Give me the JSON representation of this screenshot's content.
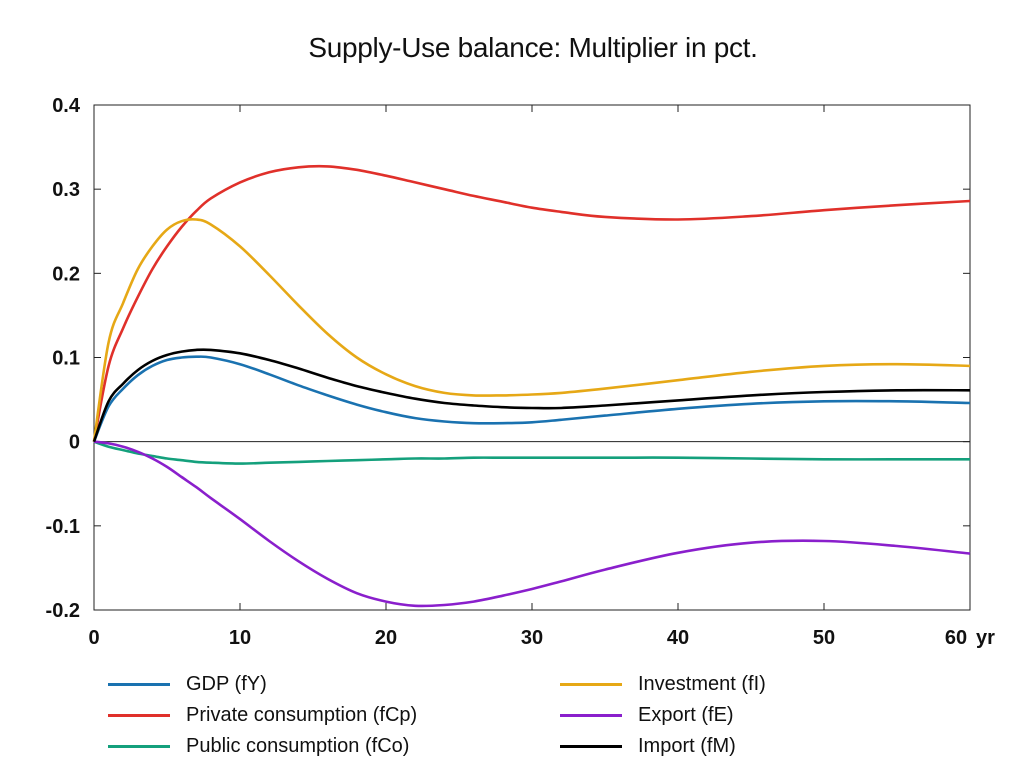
{
  "chart_data": {
    "type": "line",
    "title": "Supply-Use balance: Multiplier in pct.",
    "xlabel": "",
    "ylabel": "",
    "x_unit_label": "yr",
    "xlim": [
      0,
      60
    ],
    "ylim": [
      -0.2,
      0.4
    ],
    "x_ticks": [
      0,
      10,
      20,
      30,
      40,
      50,
      60
    ],
    "y_ticks": [
      -0.2,
      -0.1,
      0,
      0.1,
      0.2,
      0.3,
      0.4
    ],
    "y_tick_labels": [
      "-0.2",
      "-0.1",
      "0",
      "0.1",
      "0.2",
      "0.3",
      "0.4"
    ],
    "grid": false,
    "legend_position": "bottom",
    "x": [
      0,
      1,
      2,
      3,
      4,
      5,
      6,
      7,
      8,
      10,
      12,
      14,
      16,
      18,
      20,
      22,
      24,
      26,
      28,
      30,
      32,
      35,
      40,
      45,
      50,
      55,
      60
    ],
    "series": [
      {
        "name": "GDP (fY)",
        "color": "#1a72b0",
        "values": [
          0,
          0.042,
          0.063,
          0.079,
          0.09,
          0.097,
          0.1,
          0.101,
          0.1,
          0.092,
          0.08,
          0.067,
          0.055,
          0.044,
          0.035,
          0.028,
          0.024,
          0.022,
          0.022,
          0.023,
          0.026,
          0.031,
          0.039,
          0.045,
          0.048,
          0.048,
          0.046
        ]
      },
      {
        "name": "Private consumption (fCp)",
        "color": "#e0302a",
        "values": [
          0,
          0.09,
          0.135,
          0.172,
          0.205,
          0.232,
          0.255,
          0.274,
          0.289,
          0.308,
          0.32,
          0.326,
          0.327,
          0.323,
          0.316,
          0.308,
          0.3,
          0.292,
          0.285,
          0.278,
          0.273,
          0.267,
          0.264,
          0.268,
          0.275,
          0.281,
          0.286
        ]
      },
      {
        "name": "Public consumption (fCo)",
        "color": "#14a07c",
        "values": [
          0,
          -0.006,
          -0.01,
          -0.014,
          -0.017,
          -0.02,
          -0.022,
          -0.024,
          -0.025,
          -0.026,
          -0.025,
          -0.024,
          -0.023,
          -0.022,
          -0.021,
          -0.02,
          -0.02,
          -0.019,
          -0.019,
          -0.019,
          -0.019,
          -0.019,
          -0.019,
          -0.02,
          -0.021,
          -0.021,
          -0.021
        ]
      },
      {
        "name": "Investment (fI)",
        "color": "#e6a816",
        "values": [
          0,
          0.118,
          0.165,
          0.205,
          0.232,
          0.252,
          0.262,
          0.264,
          0.258,
          0.232,
          0.198,
          0.162,
          0.128,
          0.1,
          0.08,
          0.066,
          0.058,
          0.055,
          0.055,
          0.056,
          0.058,
          0.063,
          0.073,
          0.083,
          0.09,
          0.092,
          0.09
        ]
      },
      {
        "name": "Export (fE)",
        "color": "#8a1fcc",
        "values": [
          0,
          -0.002,
          -0.006,
          -0.012,
          -0.02,
          -0.03,
          -0.042,
          -0.054,
          -0.067,
          -0.092,
          -0.118,
          -0.142,
          -0.163,
          -0.18,
          -0.19,
          -0.195,
          -0.194,
          -0.19,
          -0.183,
          -0.175,
          -0.166,
          -0.152,
          -0.132,
          -0.12,
          -0.118,
          -0.124,
          -0.133
        ]
      },
      {
        "name": "Import (fM)",
        "color": "#000000",
        "values": [
          0,
          0.048,
          0.069,
          0.085,
          0.096,
          0.103,
          0.107,
          0.109,
          0.109,
          0.105,
          0.097,
          0.087,
          0.076,
          0.066,
          0.058,
          0.051,
          0.046,
          0.043,
          0.041,
          0.04,
          0.04,
          0.043,
          0.049,
          0.055,
          0.059,
          0.061,
          0.061
        ]
      }
    ]
  }
}
